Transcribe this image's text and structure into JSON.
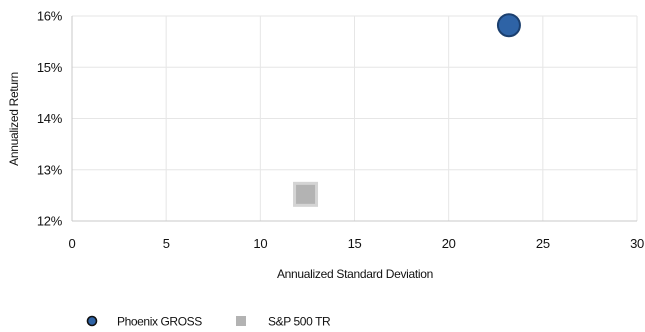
{
  "chart_data": {
    "type": "scatter",
    "title": "",
    "xlabel": "Annualized Standard Deviation",
    "ylabel": "Annualized Return",
    "xlim": [
      0,
      30
    ],
    "ylim": [
      12,
      16
    ],
    "x_ticks": [
      0,
      5,
      10,
      15,
      20,
      25,
      30
    ],
    "x_tick_labels": [
      "0",
      "5",
      "10",
      "15",
      "20",
      "25",
      "30"
    ],
    "y_ticks": [
      12,
      13,
      14,
      15,
      16
    ],
    "y_tick_labels": [
      "12%",
      "13%",
      "14%",
      "15%",
      "16%"
    ],
    "grid": true,
    "legend_position": "bottom-left",
    "series": [
      {
        "name": "Phoenix GROSS",
        "marker": "circle",
        "color": "#2e63a6",
        "edge_color": "#1b3f6e",
        "points": [
          {
            "x": 23.2,
            "y": 15.82
          }
        ]
      },
      {
        "name": "S&P 500 TR",
        "marker": "square",
        "color": "#b3b3b3",
        "edge_color": "#d4d4d4",
        "points": [
          {
            "x": 12.4,
            "y": 12.52
          }
        ]
      }
    ]
  }
}
